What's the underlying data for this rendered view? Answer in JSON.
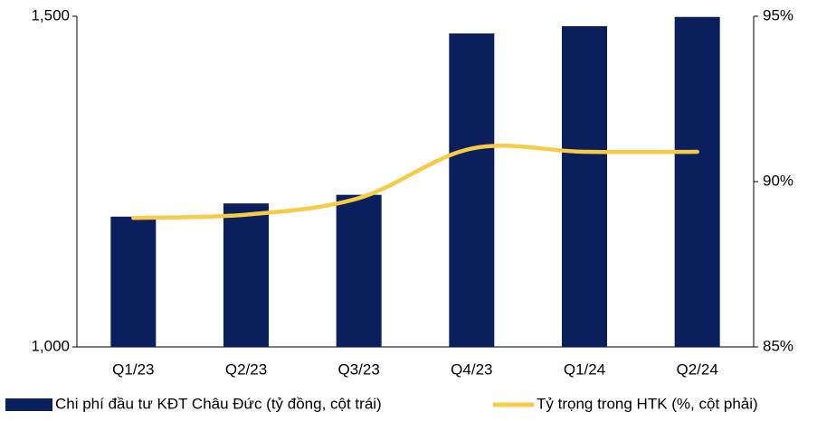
{
  "chart_data": {
    "type": "bar_line",
    "categories": [
      "Q1/23",
      "Q2/23",
      "Q3/23",
      "Q4/23",
      "Q1/24",
      "Q2/24"
    ],
    "series": [
      {
        "name": "Chi phí đầu tư KĐT Châu Đức (tỷ đồng, cột trái)",
        "type": "bar",
        "color": "#0b1f5c",
        "values": [
          1197,
          1217,
          1230,
          1474,
          1485,
          1499
        ]
      },
      {
        "name": "Tỷ trọng trong HTK (%, cột phải)",
        "type": "line",
        "axis": "y2",
        "color": "#f7cb45",
        "values": [
          88.9,
          89.0,
          89.5,
          91.0,
          90.9,
          90.9
        ]
      }
    ],
    "ylim": [
      1000,
      1500
    ],
    "yticks": [
      {
        "value": 1000,
        "label": "1,000"
      },
      {
        "value": 1500,
        "label": "1,500"
      }
    ],
    "y2lim": [
      85,
      95
    ],
    "y2ticks": [
      {
        "value": 85,
        "label": "85%"
      },
      {
        "value": 90,
        "label": "90%"
      },
      {
        "value": 95,
        "label": "95%"
      }
    ],
    "legend": "bottom"
  }
}
